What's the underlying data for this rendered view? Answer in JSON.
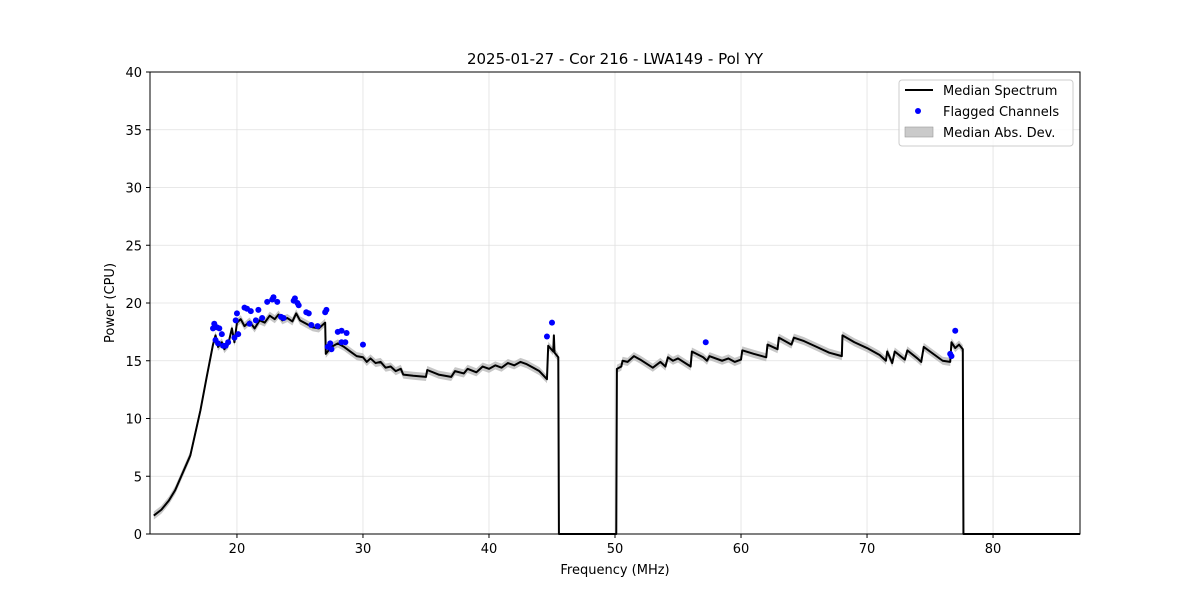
{
  "chart_data": {
    "type": "line",
    "title": "2025-01-27 - Cor 216 - LWA149 - Pol YY",
    "xlabel": "Frequency (MHz)",
    "ylabel": "Power (CPU)",
    "xlim": [
      13.1,
      86.9
    ],
    "ylim": [
      0,
      40
    ],
    "xticks": [
      20,
      30,
      40,
      50,
      60,
      70,
      80
    ],
    "yticks": [
      0,
      5,
      10,
      15,
      20,
      25,
      30,
      35,
      40
    ],
    "grid": true,
    "legend_position": "top-right",
    "legend": [
      "Median Spectrum",
      "Flagged Channels",
      "Median Abs. Dev."
    ],
    "colors": {
      "spectrum": "#000000",
      "flagged": "#0000ff",
      "mad": "#bdbdbd"
    },
    "mad_halfwidth": 0.35,
    "median_spectrum": [
      [
        13.4,
        1.6
      ],
      [
        14.0,
        2.1
      ],
      [
        14.6,
        2.9
      ],
      [
        15.1,
        3.8
      ],
      [
        15.7,
        5.3
      ],
      [
        16.3,
        6.8
      ],
      [
        17.1,
        10.7
      ],
      [
        17.6,
        13.6
      ],
      [
        18.1,
        16.4
      ],
      [
        18.3,
        17.2
      ],
      [
        18.5,
        16.2
      ],
      [
        18.8,
        16.6
      ],
      [
        19.0,
        16.0
      ],
      [
        19.3,
        16.4
      ],
      [
        19.6,
        17.8
      ],
      [
        19.8,
        16.6
      ],
      [
        20.0,
        18.3
      ],
      [
        20.3,
        18.6
      ],
      [
        20.6,
        18.0
      ],
      [
        21.0,
        18.4
      ],
      [
        21.4,
        17.8
      ],
      [
        21.8,
        18.5
      ],
      [
        22.2,
        18.3
      ],
      [
        22.6,
        18.9
      ],
      [
        23.0,
        18.6
      ],
      [
        23.3,
        19.0
      ],
      [
        23.6,
        18.5
      ],
      [
        24.0,
        18.7
      ],
      [
        24.4,
        18.4
      ],
      [
        24.7,
        19.1
      ],
      [
        25.0,
        18.5
      ],
      [
        25.5,
        18.2
      ],
      [
        26.0,
        17.9
      ],
      [
        26.5,
        17.8
      ],
      [
        27.0,
        18.3
      ],
      [
        27.05,
        15.6
      ],
      [
        27.5,
        16.2
      ],
      [
        28.0,
        16.5
      ],
      [
        28.5,
        16.2
      ],
      [
        29.0,
        15.8
      ],
      [
        29.5,
        15.4
      ],
      [
        30.0,
        15.3
      ],
      [
        30.3,
        14.9
      ],
      [
        30.6,
        15.2
      ],
      [
        31.0,
        14.8
      ],
      [
        31.4,
        14.9
      ],
      [
        31.8,
        14.4
      ],
      [
        32.2,
        14.5
      ],
      [
        32.6,
        14.1
      ],
      [
        33.0,
        14.3
      ],
      [
        33.2,
        13.8
      ],
      [
        34.0,
        13.7
      ],
      [
        35.0,
        13.6
      ],
      [
        35.1,
        14.2
      ],
      [
        36.0,
        13.8
      ],
      [
        37.0,
        13.6
      ],
      [
        37.3,
        14.1
      ],
      [
        38.0,
        13.9
      ],
      [
        38.3,
        14.3
      ],
      [
        39.0,
        14.0
      ],
      [
        39.5,
        14.5
      ],
      [
        40.0,
        14.3
      ],
      [
        40.5,
        14.6
      ],
      [
        41.0,
        14.4
      ],
      [
        41.5,
        14.8
      ],
      [
        42.0,
        14.6
      ],
      [
        42.5,
        14.9
      ],
      [
        43.0,
        14.7
      ],
      [
        43.5,
        14.4
      ],
      [
        44.0,
        14.1
      ],
      [
        44.6,
        13.4
      ],
      [
        44.7,
        16.3
      ],
      [
        45.1,
        15.8
      ],
      [
        45.15,
        17.2
      ],
      [
        45.2,
        15.7
      ],
      [
        45.5,
        15.3
      ],
      [
        45.55,
        0
      ],
      [
        50.1,
        0
      ],
      [
        50.15,
        14.3
      ],
      [
        50.5,
        14.5
      ],
      [
        50.6,
        15.0
      ],
      [
        51.0,
        14.9
      ],
      [
        51.5,
        15.4
      ],
      [
        52.0,
        15.1
      ],
      [
        53.0,
        14.4
      ],
      [
        53.6,
        14.9
      ],
      [
        54.0,
        14.5
      ],
      [
        54.2,
        15.3
      ],
      [
        54.6,
        15.0
      ],
      [
        55.0,
        15.2
      ],
      [
        56.0,
        14.5
      ],
      [
        56.1,
        15.8
      ],
      [
        57.0,
        15.3
      ],
      [
        57.3,
        15.0
      ],
      [
        57.5,
        15.4
      ],
      [
        58.5,
        15.0
      ],
      [
        59.0,
        15.2
      ],
      [
        59.5,
        14.9
      ],
      [
        60.0,
        15.1
      ],
      [
        60.1,
        15.9
      ],
      [
        61.0,
        15.6
      ],
      [
        62.0,
        15.3
      ],
      [
        62.1,
        16.4
      ],
      [
        62.9,
        16.0
      ],
      [
        63.0,
        17.0
      ],
      [
        64.0,
        16.4
      ],
      [
        64.2,
        17.0
      ],
      [
        65.0,
        16.7
      ],
      [
        66.0,
        16.2
      ],
      [
        67.0,
        15.7
      ],
      [
        68.0,
        15.4
      ],
      [
        68.05,
        17.2
      ],
      [
        69.0,
        16.6
      ],
      [
        70.0,
        16.1
      ],
      [
        71.0,
        15.5
      ],
      [
        71.5,
        15.0
      ],
      [
        71.6,
        15.8
      ],
      [
        72.0,
        14.8
      ],
      [
        72.2,
        15.8
      ],
      [
        73.0,
        15.1
      ],
      [
        73.2,
        15.9
      ],
      [
        74.0,
        15.2
      ],
      [
        74.3,
        14.9
      ],
      [
        74.5,
        16.2
      ],
      [
        75.5,
        15.4
      ],
      [
        76.0,
        15.0
      ],
      [
        76.6,
        14.9
      ],
      [
        76.7,
        16.6
      ],
      [
        77.0,
        16.1
      ],
      [
        77.3,
        16.4
      ],
      [
        77.6,
        16.0
      ],
      [
        77.65,
        0
      ],
      [
        86.9,
        0
      ]
    ],
    "flagged_channels": [
      [
        18.1,
        17.8
      ],
      [
        18.2,
        18.2
      ],
      [
        18.4,
        17.9
      ],
      [
        18.6,
        17.8
      ],
      [
        18.3,
        16.8
      ],
      [
        18.5,
        16.5
      ],
      [
        18.9,
        16.3
      ],
      [
        19.1,
        16.3
      ],
      [
        18.8,
        17.3
      ],
      [
        19.3,
        16.6
      ],
      [
        19.8,
        17.0
      ],
      [
        19.9,
        18.5
      ],
      [
        20.0,
        19.1
      ],
      [
        20.1,
        17.3
      ],
      [
        20.6,
        19.6
      ],
      [
        20.8,
        19.5
      ],
      [
        21.0,
        18.2
      ],
      [
        21.1,
        19.3
      ],
      [
        21.5,
        18.5
      ],
      [
        21.7,
        19.4
      ],
      [
        22.0,
        18.7
      ],
      [
        22.4,
        20.1
      ],
      [
        22.8,
        20.3
      ],
      [
        22.9,
        20.5
      ],
      [
        23.2,
        20.1
      ],
      [
        23.5,
        18.8
      ],
      [
        23.7,
        18.7
      ],
      [
        24.5,
        20.2
      ],
      [
        24.6,
        20.4
      ],
      [
        24.8,
        20.0
      ],
      [
        24.9,
        19.8
      ],
      [
        25.5,
        19.2
      ],
      [
        25.7,
        19.1
      ],
      [
        25.9,
        18.1
      ],
      [
        26.4,
        18.0
      ],
      [
        27.0,
        19.2
      ],
      [
        27.1,
        19.4
      ],
      [
        27.2,
        16.2
      ],
      [
        27.4,
        16.5
      ],
      [
        27.5,
        16.0
      ],
      [
        28.0,
        17.5
      ],
      [
        28.3,
        17.6
      ],
      [
        28.7,
        17.4
      ],
      [
        28.3,
        16.6
      ],
      [
        28.6,
        16.6
      ],
      [
        30.0,
        16.4
      ],
      [
        44.6,
        17.1
      ],
      [
        45.0,
        18.3
      ],
      [
        57.2,
        16.6
      ],
      [
        76.6,
        15.6
      ],
      [
        76.7,
        15.4
      ],
      [
        77.0,
        17.6
      ]
    ]
  }
}
